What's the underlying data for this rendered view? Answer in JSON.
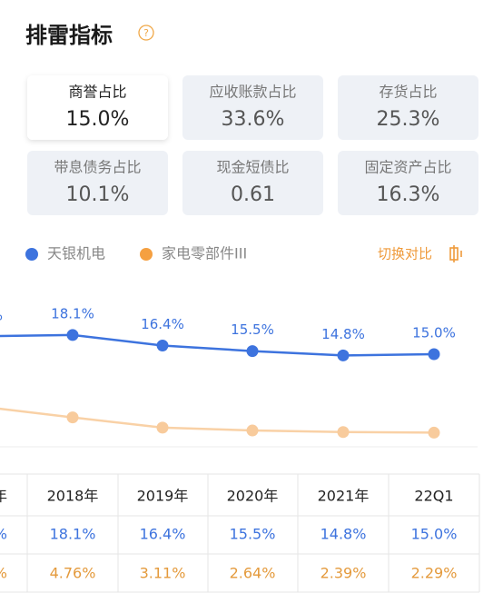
{
  "header": {
    "title": "排雷指标",
    "help": "?"
  },
  "cards": [
    {
      "label": "商誉占比",
      "value": "15.0%",
      "selected": true
    },
    {
      "label": "应收账款占比",
      "value": "33.6%",
      "selected": false
    },
    {
      "label": "存货占比",
      "value": "25.3%",
      "selected": false
    },
    {
      "label": "带息债务占比",
      "value": "10.1%",
      "selected": false
    },
    {
      "label": "现金短债比",
      "value": "0.61",
      "selected": false
    },
    {
      "label": "固定资产占比",
      "value": "16.3%",
      "selected": false
    }
  ],
  "toggle": "切换对比",
  "chart_data": {
    "type": "line",
    "categories": [
      "年",
      "2018年",
      "2019年",
      "2020年",
      "2021年",
      "22Q1"
    ],
    "ylim": [
      0,
      25
    ],
    "clipped_label": "%",
    "series": [
      {
        "name": "天银机电",
        "color": "#3d73de",
        "values": [
          17.9,
          18.1,
          16.4,
          15.5,
          14.8,
          15.0
        ],
        "value_labels": [
          null,
          "18.1%",
          "16.4%",
          "15.5%",
          "14.8%",
          "15.0%"
        ]
      },
      {
        "name": "家电零部件III",
        "color": "#f5a041",
        "values": [
          6.5,
          4.76,
          3.11,
          2.64,
          2.39,
          2.29
        ]
      }
    ]
  },
  "table": {
    "rows": [
      [
        "%",
        "18.1%",
        "16.4%",
        "15.5%",
        "14.8%",
        "15.0%"
      ],
      [
        "%",
        "4.76%",
        "3.11%",
        "2.64%",
        "2.39%",
        "2.29%"
      ]
    ]
  }
}
